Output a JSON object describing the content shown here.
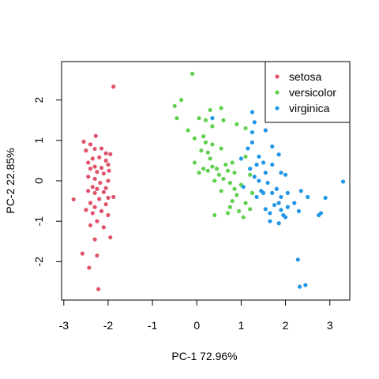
{
  "chart_data": {
    "type": "scatter",
    "title": "",
    "xlabel": "PC-1 72.96%",
    "ylabel": "PC-2  22.85%",
    "xlim": [
      -3.05,
      3.45
    ],
    "ylim": [
      -2.95,
      2.95
    ],
    "xticks": [
      -3,
      -2,
      -1,
      0,
      1,
      2,
      3
    ],
    "yticks": [
      -2,
      -1,
      0,
      1,
      2
    ],
    "xtick_labels": [
      "-3",
      "-2",
      "-1",
      "0",
      "1",
      "2",
      "3"
    ],
    "ytick_labels": [
      "-2",
      "-1",
      "0",
      "1",
      "2"
    ],
    "grid": false,
    "legend_position": "top-right",
    "series": [
      {
        "name": "setosa",
        "color": "#DF536B",
        "points": [
          [
            -1.88,
            2.33
          ],
          [
            -2.28,
            1.11
          ],
          [
            -2.55,
            0.97
          ],
          [
            -2.4,
            0.9
          ],
          [
            -2.3,
            0.79
          ],
          [
            -2.5,
            0.75
          ],
          [
            -2.15,
            0.8
          ],
          [
            -2.05,
            0.68
          ],
          [
            -1.95,
            0.66
          ],
          [
            -2.2,
            0.58
          ],
          [
            -2.35,
            0.55
          ],
          [
            -2.05,
            0.5
          ],
          [
            -2.45,
            0.45
          ],
          [
            -2.0,
            0.4
          ],
          [
            -2.3,
            0.35
          ],
          [
            -2.15,
            0.32
          ],
          [
            -2.4,
            0.3
          ],
          [
            -1.98,
            0.25
          ],
          [
            -2.25,
            0.22
          ],
          [
            -2.1,
            0.18
          ],
          [
            -2.45,
            0.1
          ],
          [
            -2.3,
            0.05
          ],
          [
            -2.0,
            0.0
          ],
          [
            -2.18,
            -0.05
          ],
          [
            -2.35,
            -0.15
          ],
          [
            -2.05,
            -0.18
          ],
          [
            -2.25,
            -0.2
          ],
          [
            -2.45,
            -0.25
          ],
          [
            -2.1,
            -0.28
          ],
          [
            -2.3,
            -0.3
          ],
          [
            -1.88,
            -0.4
          ],
          [
            -2.0,
            -0.42
          ],
          [
            -2.2,
            -0.45
          ],
          [
            -2.78,
            -0.46
          ],
          [
            -2.4,
            -0.55
          ],
          [
            -2.05,
            -0.58
          ],
          [
            -2.3,
            -0.65
          ],
          [
            -2.5,
            -0.72
          ],
          [
            -2.15,
            -0.75
          ],
          [
            -2.35,
            -0.8
          ],
          [
            -2.0,
            -0.85
          ],
          [
            -2.25,
            -1.0
          ],
          [
            -2.4,
            -1.1
          ],
          [
            -2.1,
            -1.15
          ],
          [
            -2.3,
            -1.45
          ],
          [
            -1.95,
            -1.4
          ],
          [
            -2.58,
            -1.8
          ],
          [
            -2.25,
            -1.85
          ],
          [
            -2.43,
            -2.15
          ],
          [
            -2.22,
            -2.68
          ]
        ]
      },
      {
        "name": "versicolor",
        "color": "#61D04F",
        "points": [
          [
            -0.1,
            2.65
          ],
          [
            -0.35,
            2.0
          ],
          [
            -0.5,
            1.85
          ],
          [
            0.55,
            1.8
          ],
          [
            0.3,
            1.75
          ],
          [
            -0.45,
            1.55
          ],
          [
            0.05,
            1.55
          ],
          [
            0.2,
            1.5
          ],
          [
            0.35,
            1.35
          ],
          [
            0.6,
            1.5
          ],
          [
            -0.2,
            1.25
          ],
          [
            0.15,
            1.1
          ],
          [
            0.9,
            1.4
          ],
          [
            1.1,
            1.3
          ],
          [
            -0.05,
            1.05
          ],
          [
            0.2,
            0.95
          ],
          [
            0.35,
            0.9
          ],
          [
            0.1,
            0.75
          ],
          [
            0.25,
            0.7
          ],
          [
            0.55,
            0.8
          ],
          [
            0.3,
            0.55
          ],
          [
            0.8,
            0.45
          ],
          [
            -0.05,
            0.45
          ],
          [
            1.1,
            0.6
          ],
          [
            0.65,
            0.4
          ],
          [
            0.35,
            0.35
          ],
          [
            0.15,
            0.3
          ],
          [
            0.45,
            0.3
          ],
          [
            0.25,
            0.25
          ],
          [
            0.7,
            0.25
          ],
          [
            0.5,
            0.15
          ],
          [
            0.85,
            0.2
          ],
          [
            1.2,
            0.15
          ],
          [
            0.05,
            0.2
          ],
          [
            0.6,
            0.05
          ],
          [
            0.4,
            0.0
          ],
          [
            0.75,
            -0.05
          ],
          [
            1.0,
            -0.1
          ],
          [
            0.85,
            -0.2
          ],
          [
            0.55,
            -0.25
          ],
          [
            0.9,
            -0.35
          ],
          [
            1.25,
            -0.3
          ],
          [
            0.8,
            -0.5
          ],
          [
            1.1,
            -0.55
          ],
          [
            0.75,
            -0.65
          ],
          [
            0.95,
            -0.75
          ],
          [
            1.2,
            -0.7
          ],
          [
            0.4,
            -0.85
          ],
          [
            0.7,
            -0.8
          ],
          [
            1.05,
            -0.9
          ]
        ]
      },
      {
        "name": "virginica",
        "color": "#2297E6",
        "points": [
          [
            1.25,
            1.7
          ],
          [
            0.35,
            1.55
          ],
          [
            1.3,
            1.45
          ],
          [
            1.25,
            1.2
          ],
          [
            1.55,
            1.25
          ],
          [
            1.25,
            0.95
          ],
          [
            1.7,
            0.85
          ],
          [
            1.15,
            0.8
          ],
          [
            1.0,
            0.55
          ],
          [
            1.4,
            0.6
          ],
          [
            1.85,
            0.65
          ],
          [
            1.5,
            0.45
          ],
          [
            1.35,
            0.4
          ],
          [
            1.7,
            0.4
          ],
          [
            1.2,
            0.3
          ],
          [
            1.55,
            0.2
          ],
          [
            1.9,
            0.2
          ],
          [
            2.0,
            0.15
          ],
          [
            1.3,
            0.1
          ],
          [
            1.4,
            0.0
          ],
          [
            1.6,
            -0.05
          ],
          [
            3.3,
            -0.02
          ],
          [
            1.05,
            -0.15
          ],
          [
            1.8,
            -0.2
          ],
          [
            1.45,
            -0.25
          ],
          [
            1.7,
            -0.3
          ],
          [
            1.5,
            -0.3
          ],
          [
            2.05,
            -0.3
          ],
          [
            1.35,
            -0.4
          ],
          [
            1.9,
            -0.4
          ],
          [
            2.5,
            -0.4
          ],
          [
            2.35,
            -0.25
          ],
          [
            2.9,
            -0.42
          ],
          [
            1.85,
            -0.55
          ],
          [
            2.2,
            -0.55
          ],
          [
            1.75,
            -0.6
          ],
          [
            2.05,
            -0.65
          ],
          [
            1.55,
            -0.7
          ],
          [
            1.9,
            -0.72
          ],
          [
            2.3,
            -0.75
          ],
          [
            1.65,
            -0.8
          ],
          [
            1.95,
            -0.85
          ],
          [
            2.8,
            -0.8
          ],
          [
            2.75,
            -0.85
          ],
          [
            2.0,
            -0.9
          ],
          [
            1.65,
            -1.0
          ],
          [
            1.85,
            -1.05
          ],
          [
            2.28,
            -1.95
          ],
          [
            2.45,
            -2.58
          ],
          [
            2.32,
            -2.62
          ]
        ]
      }
    ]
  }
}
